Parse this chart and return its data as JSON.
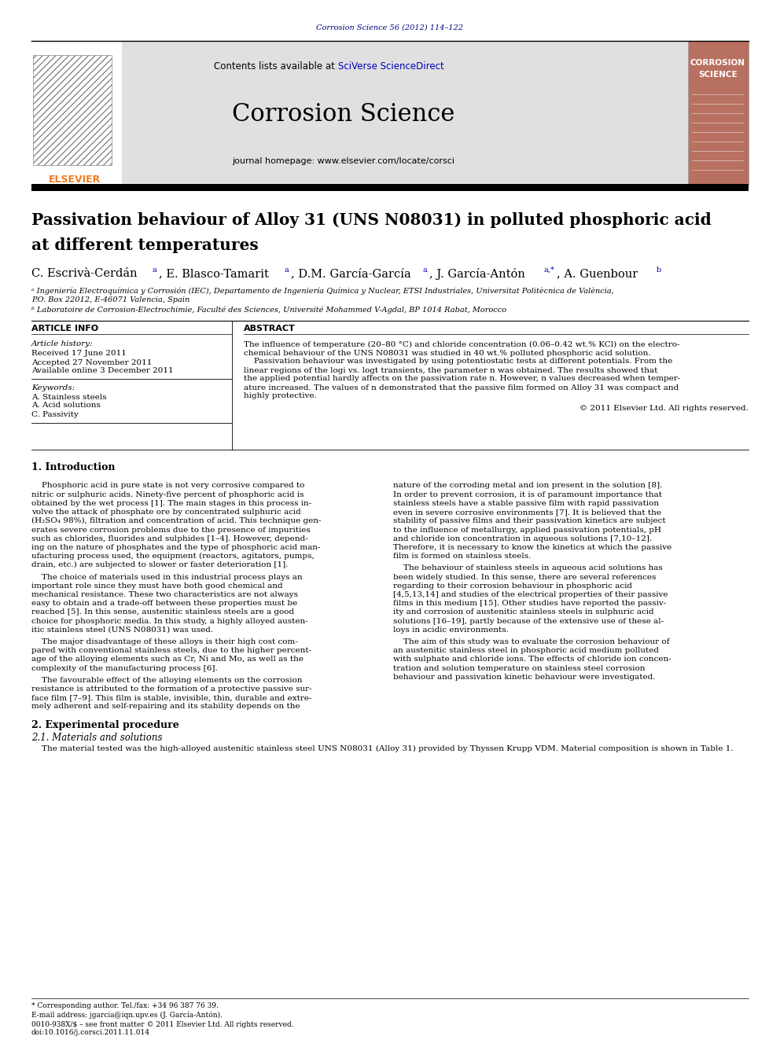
{
  "journal_ref": "Corrosion Science 56 (2012) 114–122",
  "journal_ref_color": "#000080",
  "header_bg": "#e0e0e0",
  "contents_text": "Contents lists available at ",
  "sciverse_text": "SciVerse ScienceDirect",
  "journal_name": "Corrosion Science",
  "journal_homepage": "journal homepage: www.elsevier.com/locate/corsci",
  "cover_bg": "#b87060",
  "cover_title1": "CORROSION",
  "cover_title2": "SCIENCE",
  "article_title_line1": "Passivation behaviour of Alloy 31 (UNS N08031) in polluted phosphoric acid",
  "article_title_line2": "at different temperatures",
  "affil_a": "ᵃ Ingeniería Electroquímica y Corrosión (IEC), Departamento de Ingeniería Química y Nuclear, ETSI Industriales, Universitat Politècnica de València,",
  "affil_a2": "P.O. Box 22012, E-46071 Valencia, Spain",
  "affil_b": "ᵇ Laboratoire de Corrosion-Electrochimie, Faculté des Sciences, Université Mohammed V-Agdal, BP 1014 Rabat, Morocco",
  "article_info_label": "ARTICLE INFO",
  "abstract_label": "ABSTRACT",
  "article_history": "Article history:",
  "received": "Received 17 June 2011",
  "accepted": "Accepted 27 November 2011",
  "available": "Available online 3 December 2011",
  "keywords_label": "Keywords:",
  "keyword1": "A. Stainless steels",
  "keyword2": "A. Acid solutions",
  "keyword3": "C. Passivity",
  "copyright": "© 2011 Elsevier Ltd. All rights reserved.",
  "intro_title": "1. Introduction",
  "section2_title": "2. Experimental procedure",
  "section21_title": "2.1. Materials and solutions",
  "section21_text": "    The material tested was the high-alloyed austenitic stainless steel UNS N08031 (Alloy 31) provided by Thyssen Krupp VDM. Material composition is shown in Table 1.",
  "footnote_star": "* Corresponding author. Tel./fax: +34 96 387 76 39.",
  "footnote_email": "E-mail address: jgarcia@iqn.upv.es (J. García-Antón).",
  "footnote_issn": "0010-938X/$ – see front matter © 2011 Elsevier Ltd. All rights reserved.",
  "footnote_doi": "doi:10.1016/j.corsci.2011.11.014",
  "link_color": "#0000bb",
  "elsevier_orange": "#f47920",
  "abstract_lines": [
    "The influence of temperature (20–80 °C) and chloride concentration (0.06–0.42 wt.% KCl) on the electro-",
    "chemical behaviour of the UNS N08031 was studied in 40 wt.% polluted phosphoric acid solution.",
    "    Passivation behaviour was investigated by using potentiostatic tests at different potentials. From the",
    "linear regions of the logi vs. logt transients, the parameter n was obtained. The results showed that",
    "the applied potential hardly affects on the passivation rate n. However, n values decreased when temper-",
    "ature increased. The values of n demonstrated that the passive film formed on Alloy 31 was compact and",
    "highly protective."
  ],
  "para1_lines": [
    "    Phosphoric acid in pure state is not very corrosive compared to",
    "nitric or sulphuric acids. Ninety-five percent of phosphoric acid is",
    "obtained by the wet process [1]. The main stages in this process in-",
    "volve the attack of phosphate ore by concentrated sulphuric acid",
    "(H₂SO₄ 98%), filtration and concentration of acid. This technique gen-",
    "erates severe corrosion problems due to the presence of impurities",
    "such as chlorides, fluorides and sulphides [1–4]. However, depend-",
    "ing on the nature of phosphates and the type of phosphoric acid man-",
    "ufacturing process used, the equipment (reactors, agitators, pumps,",
    "drain, etc.) are subjected to slower or faster deterioration [1]."
  ],
  "para2_lines": [
    "    The choice of materials used in this industrial process plays an",
    "important role since they must have both good chemical and",
    "mechanical resistance. These two characteristics are not always",
    "easy to obtain and a trade-off between these properties must be",
    "reached [5]. In this sense, austenitic stainless steels are a good",
    "choice for phosphoric media. In this study, a highly alloyed austen-",
    "itic stainless steel (UNS N08031) was used."
  ],
  "para3_lines": [
    "    The major disadvantage of these alloys is their high cost com-",
    "pared with conventional stainless steels, due to the higher percent-",
    "age of the alloying elements such as Cr, Ni and Mo, as well as the",
    "complexity of the manufacturing process [6]."
  ],
  "para4_lines": [
    "    The favourable effect of the alloying elements on the corrosion",
    "resistance is attributed to the formation of a protective passive sur-",
    "face film [7–9]. This film is stable, invisible, thin, durable and extre-",
    "mely adherent and self-repairing and its stability depends on the"
  ],
  "rpara1_lines": [
    "nature of the corroding metal and ion present in the solution [8].",
    "In order to prevent corrosion, it is of paramount importance that",
    "stainless steels have a stable passive film with rapid passivation",
    "even in severe corrosive environments [7]. It is believed that the",
    "stability of passive films and their passivation kinetics are subject",
    "to the influence of metallurgy, applied passivation potentials, pH",
    "and chloride ion concentration in aqueous solutions [7,10–12].",
    "Therefore, it is necessary to know the kinetics at which the passive",
    "film is formed on stainless steels."
  ],
  "rpara2_lines": [
    "    The behaviour of stainless steels in aqueous acid solutions has",
    "been widely studied. In this sense, there are several references",
    "regarding to their corrosion behaviour in phosphoric acid",
    "[4,5,13,14] and studies of the electrical properties of their passive",
    "films in this medium [15]. Other studies have reported the passiv-",
    "ity and corrosion of austenitic stainless steels in sulphuric acid",
    "solutions [16–19], partly because of the extensive use of these al-",
    "loys in acidic environments."
  ],
  "rpara3_lines": [
    "    The aim of this study was to evaluate the corrosion behaviour of",
    "an austenitic stainless steel in phosphoric acid medium polluted",
    "with sulphate and chloride ions. The effects of chloride ion concen-",
    "tration and solution temperature on stainless steel corrosion",
    "behaviour and passivation kinetic behaviour were investigated."
  ]
}
